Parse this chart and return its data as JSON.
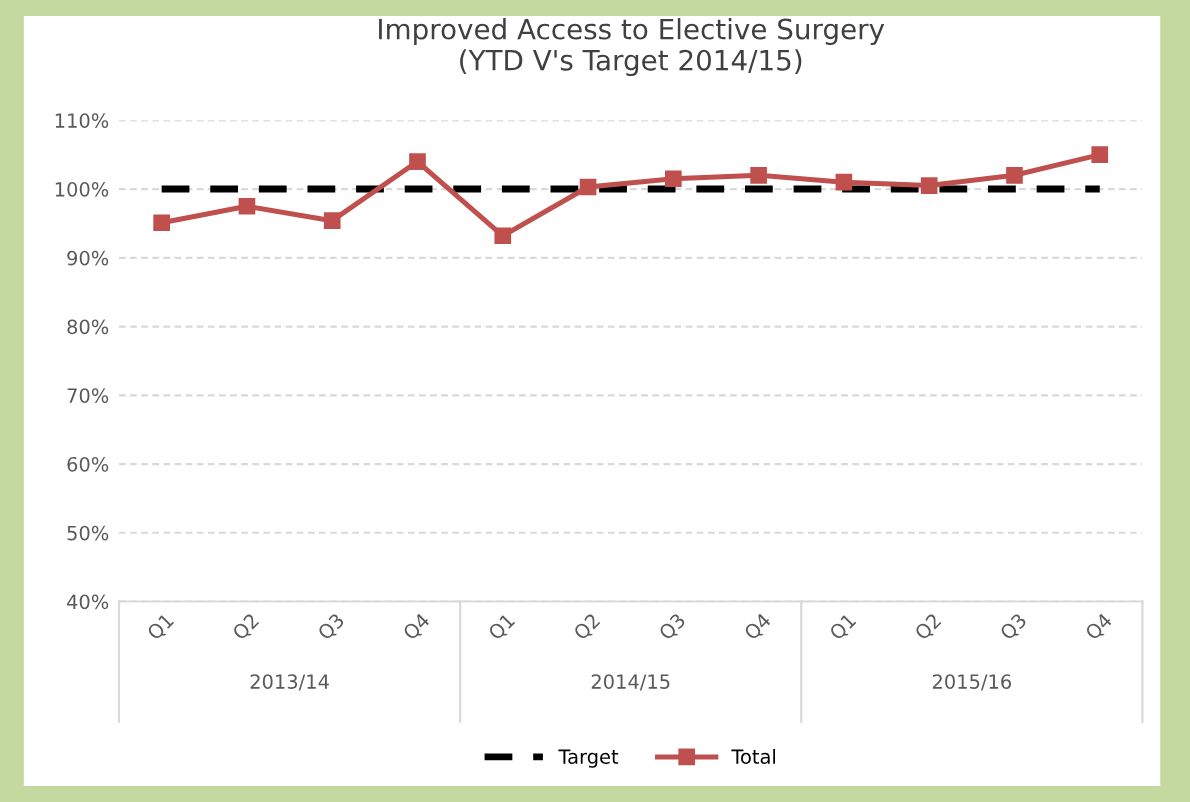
{
  "chart_data": {
    "type": "line",
    "title": "Improved Access to Elective Surgery\n(YTD V's Target 2014/15)",
    "categories": [
      "Q1",
      "Q2",
      "Q3",
      "Q4",
      "Q1",
      "Q2",
      "Q3",
      "Q4",
      "Q1",
      "Q2",
      "Q3",
      "Q4"
    ],
    "series": [
      {
        "name": "Target",
        "color": "#000000",
        "line_style": "dashed",
        "marker": "none",
        "values": [
          100,
          100,
          100,
          100,
          100,
          100,
          100,
          100,
          100,
          100,
          100,
          100
        ]
      },
      {
        "name": "Total",
        "color": "#c0504d",
        "line_style": "solid",
        "marker": "square",
        "values": [
          95.1,
          97.5,
          95.4,
          104,
          93.2,
          100.3,
          101.5,
          102,
          101,
          100.5,
          102,
          105
        ]
      }
    ],
    "annotations": [
      "2013/14",
      "2014/15",
      "2015/16"
    ],
    "ylim": [
      40,
      110
    ],
    "yticks": [
      {
        "value": 40,
        "label": "40%"
      },
      {
        "value": 50,
        "label": "50%"
      },
      {
        "value": 60,
        "label": "60%"
      },
      {
        "value": 70,
        "label": "70%"
      },
      {
        "value": 80,
        "label": "80%"
      },
      {
        "value": 90,
        "label": "90%"
      },
      {
        "value": 100,
        "label": "100%"
      },
      {
        "value": 110,
        "label": "110%"
      }
    ],
    "grid": "y",
    "legend": "bottom"
  }
}
